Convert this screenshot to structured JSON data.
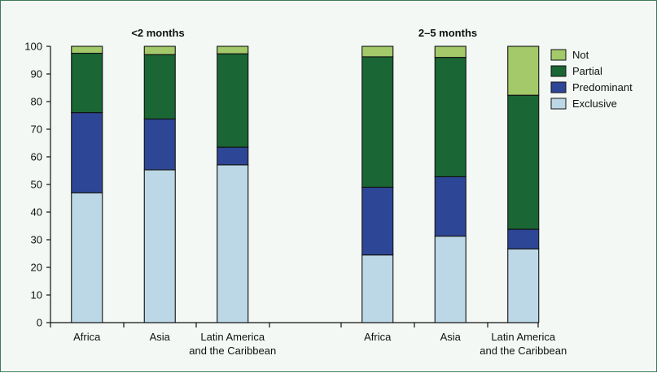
{
  "chart_data": {
    "type": "bar",
    "stacked": true,
    "ylim": [
      0,
      100
    ],
    "yticks": [
      0,
      10,
      20,
      30,
      40,
      50,
      60,
      70,
      80,
      90,
      100
    ],
    "legend_position": "right",
    "panels": [
      {
        "title": "<2 months",
        "categories": [
          [
            "Africa"
          ],
          [
            "Asia"
          ],
          [
            "Latin America",
            "and the Caribbean"
          ]
        ],
        "series": [
          {
            "name": "Exclusive",
            "values": [
              47,
              55.3,
              57.1
            ]
          },
          {
            "name": "Predominant",
            "values": [
              29,
              18.4,
              6.4
            ]
          },
          {
            "name": "Partial",
            "values": [
              21.5,
              23.3,
              33.8
            ]
          },
          {
            "name": "Not",
            "values": [
              2.5,
              3,
              2.7
            ]
          }
        ]
      },
      {
        "title": "2–5 months",
        "categories": [
          [
            "Africa"
          ],
          [
            "Asia"
          ],
          [
            "Latin America",
            "and the Caribbean"
          ]
        ],
        "series": [
          {
            "name": "Exclusive",
            "values": [
              24.5,
              31.3,
              26.7
            ]
          },
          {
            "name": "Predominant",
            "values": [
              24.5,
              21.5,
              7.1
            ]
          },
          {
            "name": "Partial",
            "values": [
              47.2,
              43.2,
              48.5
            ]
          },
          {
            "name": "Not",
            "values": [
              3.8,
              4,
              17.7
            ]
          }
        ]
      }
    ],
    "legend": [
      "Not",
      "Partial",
      "Predominant",
      "Exclusive"
    ],
    "colors": {
      "Exclusive": "#bcd8e6",
      "Predominant": "#2e4696",
      "Partial": "#1a6634",
      "Not": "#a3c96a"
    }
  }
}
